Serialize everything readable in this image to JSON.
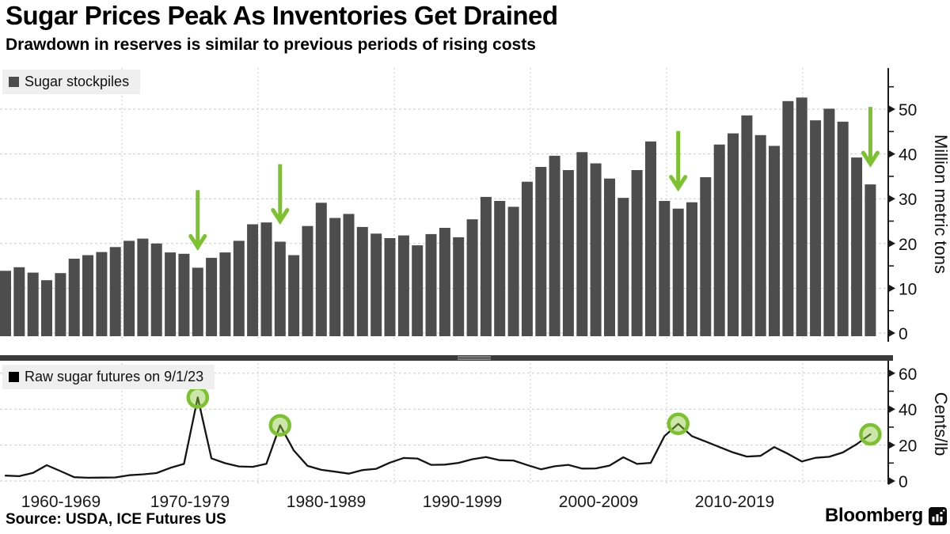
{
  "header": {
    "title": "Sugar Prices Peak As Inventories Get Drained",
    "subtitle": "Drawdown in reserves is similar to previous periods of rising costs"
  },
  "source": "Source: USDA, ICE Futures US",
  "brand": "Bloomberg",
  "colors": {
    "bar": "#4d4d4d",
    "line": "#141414",
    "accent_green": "#7cc22e",
    "circle_fill": "rgba(141,198,63,0.45)",
    "grid": "#c9c9c9",
    "axis": "#1a1a1a",
    "legend_bg": "#efefef",
    "divider": "#3b3b3b"
  },
  "x_axis": {
    "decade_labels": [
      "1960-1969",
      "1970-1979",
      "1980-1989",
      "1990-1999",
      "2000-2009",
      "2010-2019"
    ]
  },
  "chart_data": [
    {
      "type": "bar",
      "title": "Sugar stockpiles",
      "ylabel": "Million metric tons",
      "ylim": [
        0,
        55
      ],
      "yticks": [
        0,
        10,
        20,
        30,
        40,
        50
      ],
      "grid": true,
      "legend_position": "top-left",
      "year_start": 1960,
      "values": [
        13.9,
        14.7,
        13.5,
        11.8,
        13.4,
        16.6,
        17.4,
        18.1,
        19.2,
        20.6,
        21.1,
        20.0,
        18.0,
        17.7,
        14.6,
        16.8,
        18.0,
        20.6,
        24.3,
        24.7,
        20.4,
        17.4,
        23.9,
        29.1,
        25.7,
        26.6,
        23.7,
        22.2,
        21.2,
        21.8,
        19.6,
        22.1,
        23.5,
        21.4,
        25.4,
        30.4,
        29.5,
        28.2,
        33.8,
        37.1,
        39.6,
        36.4,
        40.4,
        37.9,
        34.5,
        30.2,
        36.4,
        42.8,
        29.5,
        27.8,
        29.2,
        34.8,
        42.1,
        44.6,
        48.6,
        44.2,
        41.8,
        51.8,
        52.6,
        47.5,
        50.1,
        47.2,
        39.2,
        33.2
      ],
      "arrow_years": [
        1974,
        1980,
        2009,
        2023
      ]
    },
    {
      "type": "line",
      "title": "Raw sugar futures on 9/1/23",
      "ylabel": "Cents/lb",
      "ylim": [
        0,
        60
      ],
      "yticks": [
        0,
        20,
        40,
        60
      ],
      "grid": true,
      "legend_position": "top-left",
      "year_start": 1960,
      "values": [
        3.0,
        2.7,
        4.5,
        8.8,
        5.5,
        2.1,
        1.8,
        1.9,
        2.0,
        3.2,
        3.7,
        4.4,
        7.3,
        9.5,
        46.5,
        12.6,
        9.9,
        8.1,
        7.9,
        9.6,
        31.0,
        17.0,
        8.4,
        6.2,
        5.2,
        4.1,
        6.1,
        6.8,
        10.2,
        12.8,
        12.5,
        9.0,
        9.1,
        10.1,
        12.1,
        13.3,
        11.6,
        11.4,
        8.9,
        6.5,
        8.2,
        9.0,
        6.9,
        7.0,
        8.6,
        13.2,
        9.5,
        10.1,
        25.0,
        31.8,
        25.0,
        22.0,
        18.9,
        15.9,
        13.6,
        14.0,
        18.9,
        15.1,
        10.9,
        12.9,
        13.5,
        15.9,
        20.5,
        26.0
      ],
      "highlight_years": [
        1974,
        1980,
        2009,
        2023
      ]
    }
  ]
}
